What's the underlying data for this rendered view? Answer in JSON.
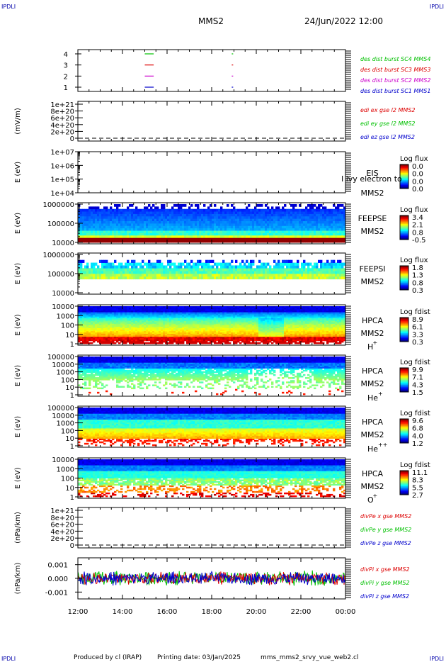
{
  "header": {
    "corner_label": "IPDLI",
    "spacecraft": "MMS2",
    "datetime": "24/Jun/2022 12:00"
  },
  "footer": {
    "produced_by": "Produced by cl (IRAP)",
    "printing_date": "Printing date: 03/Jan/2025",
    "filename": "mms_mms2_srvy_vue_web2.cl"
  },
  "colors": {
    "red": "#dd0000",
    "green": "#00c000",
    "blue": "#0000cc",
    "magenta": "#cc00cc"
  },
  "time_axis": {
    "ticks": [
      "12:00",
      "14:00",
      "16:00",
      "18:00",
      "20:00",
      "22:00",
      "00:00"
    ],
    "start_hour": 12,
    "end_hour": 24
  },
  "chart_data": [
    {
      "id": "burst",
      "type": "line",
      "ylabel": "",
      "yticks": [
        "1",
        "2",
        "3",
        "4"
      ],
      "series": [
        {
          "name": "des dist burst SC1 MMS1",
          "color": "#0000cc",
          "level": 1,
          "intervals": [
            [
              15.0,
              15.4
            ],
            [
              18.9,
              18.95
            ]
          ]
        },
        {
          "name": "des dist burst SC2 MMS2",
          "color": "#cc00cc",
          "level": 2,
          "intervals": [
            [
              15.0,
              15.4
            ],
            [
              18.9,
              18.95
            ]
          ]
        },
        {
          "name": "des dist burst SC3 MMS3",
          "color": "#dd0000",
          "level": 3,
          "intervals": [
            [
              15.0,
              15.4
            ],
            [
              18.9,
              18.95
            ]
          ]
        },
        {
          "name": "des dist burst SC4 MMS4",
          "color": "#00c000",
          "level": 4,
          "intervals": [
            [
              15.0,
              15.4
            ],
            [
              18.9,
              18.95
            ]
          ]
        }
      ]
    },
    {
      "id": "edi",
      "type": "line",
      "ylabel": "(mV/m)",
      "yticks": [
        "0",
        "2e+20",
        "4e+20",
        "6e+20",
        "8e+20",
        "1e+21"
      ],
      "series": [
        {
          "name": "edi ex gse l2 MMS2",
          "color": "#dd0000"
        },
        {
          "name": "edi ey gse l2 MMS2",
          "color": "#00c000"
        },
        {
          "name": "edi ez gse l2 MMS2",
          "color": "#0000cc"
        }
      ]
    },
    {
      "id": "eis",
      "type": "heatmap",
      "ylabel": "E (eV)",
      "yticks": [
        "1e+04",
        "1e+05",
        "1e+06",
        "1e+07"
      ],
      "labels": [
        "EIS",
        "MMS2"
      ],
      "overlay_text": "I lvy electron to",
      "colorbar": {
        "title": "Log flux",
        "ticks": [
          "0.0",
          "0.0",
          "0.0",
          "0.0"
        ]
      }
    },
    {
      "id": "feepse",
      "type": "heatmap",
      "ylabel": "E (eV)",
      "yticks": [
        "10000",
        "100000",
        "1000000"
      ],
      "labels": [
        "FEEPSE",
        "MMS2"
      ],
      "colorbar": {
        "title": "Log flux",
        "ticks": [
          "3.4",
          "2.1",
          "0.8",
          "-0.5"
        ]
      }
    },
    {
      "id": "feepsi",
      "type": "heatmap",
      "ylabel": "E (eV)",
      "yticks": [
        "10000",
        "100000",
        "1000000"
      ],
      "labels": [
        "FEEPSI",
        "MMS2"
      ],
      "colorbar": {
        "title": "Log flux",
        "ticks": [
          "1.8",
          "1.3",
          "0.8",
          "0.3"
        ]
      }
    },
    {
      "id": "hpca_h",
      "type": "heatmap",
      "ylabel": "E (eV)",
      "yticks": [
        "1",
        "10",
        "100",
        "1000",
        "10000"
      ],
      "labels": [
        "HPCA",
        "MMS2"
      ],
      "species": "H",
      "charge": "+",
      "colorbar": {
        "title": "Log fdist",
        "ticks": [
          "8.9",
          "6.1",
          "3.3",
          "0.3"
        ]
      }
    },
    {
      "id": "hpca_he",
      "type": "heatmap",
      "ylabel": "E (eV)",
      "yticks": [
        "1",
        "10",
        "100",
        "1000",
        "10000",
        "100000"
      ],
      "labels": [
        "HPCA",
        "MMS2"
      ],
      "species": "He",
      "charge": "+",
      "colorbar": {
        "title": "Log fdist",
        "ticks": [
          "9.9",
          "7.1",
          "4.3",
          "1.5"
        ]
      }
    },
    {
      "id": "hpca_hepp",
      "type": "heatmap",
      "ylabel": "E (eV)",
      "yticks": [
        "1",
        "10",
        "100",
        "1000",
        "10000",
        "100000"
      ],
      "labels": [
        "HPCA",
        "MMS2"
      ],
      "species": "He",
      "charge": "++",
      "colorbar": {
        "title": "Log fdist",
        "ticks": [
          "9.6",
          "6.8",
          "4.0",
          "1.2"
        ]
      }
    },
    {
      "id": "hpca_o",
      "type": "heatmap",
      "ylabel": "E (eV)",
      "yticks": [
        "1",
        "10",
        "100",
        "1000",
        "10000"
      ],
      "labels": [
        "HPCA",
        "MMS2"
      ],
      "species": "O",
      "charge": "+",
      "colorbar": {
        "title": "Log fdist",
        "ticks": [
          "11.1",
          "8.3",
          "5.5",
          "2.7"
        ]
      }
    },
    {
      "id": "divpe",
      "type": "line",
      "ylabel": "(nPa/km)",
      "yticks": [
        "0",
        "2e+20",
        "4e+20",
        "6e+20",
        "8e+20",
        "1e+21"
      ],
      "series": [
        {
          "name": "divPe x gse MMS2",
          "color": "#dd0000"
        },
        {
          "name": "divPe y gse MMS2",
          "color": "#00c000"
        },
        {
          "name": "divPe z gse MMS2",
          "color": "#0000cc"
        }
      ]
    },
    {
      "id": "divpi",
      "type": "line",
      "ylabel": "(nPa/km)",
      "yticks": [
        "-0.001",
        "0.000",
        "0.001"
      ],
      "ylim": [
        -0.0015,
        0.0015
      ],
      "series": [
        {
          "name": "divPi x gse MMS2",
          "color": "#dd0000"
        },
        {
          "name": "divPi y gse MMS2",
          "color": "#00c000"
        },
        {
          "name": "divPi z gse MMS2",
          "color": "#0000cc"
        }
      ]
    }
  ]
}
